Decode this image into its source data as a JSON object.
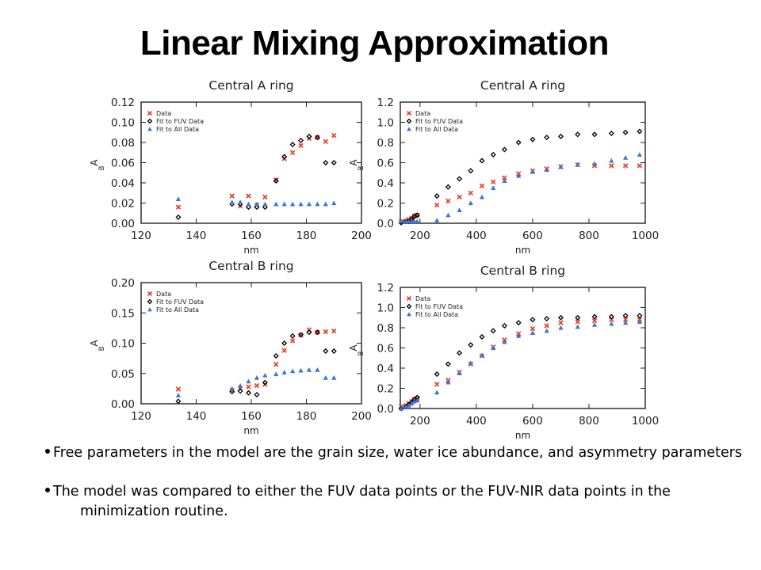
{
  "slide": {
    "title": "Linear Mixing Approximation",
    "bullets": [
      "Free parameters in the model are the grain size, water ice abundance, and asymmetry parameters",
      "The model was compared to either the FUV data points or the FUV-NIR data points in the minimization routine."
    ]
  },
  "colors": {
    "data": "#e8432b",
    "fit_fuv": "#000000",
    "fit_all": "#3a74d8"
  },
  "chart_data": [
    {
      "type": "scatter",
      "title": "Central A ring",
      "xlabel": "nm",
      "ylabel": "A",
      "ylabel_sub": "B",
      "xlim": [
        120,
        200
      ],
      "ylim": [
        0,
        0.12
      ],
      "xticks": [
        120,
        140,
        160,
        180,
        200
      ],
      "xtick_labels": [
        "120",
        "140",
        "160",
        "180",
        "200"
      ],
      "yticks": [
        0,
        0.02,
        0.04,
        0.06,
        0.08,
        0.1,
        0.12
      ],
      "ytick_labels": [
        "0.00",
        "0.02",
        "0.04",
        "0.06",
        "0.08",
        "0.10",
        "0.12"
      ],
      "legend": "top-left",
      "series": [
        {
          "name": "Data",
          "marker": "x",
          "x": [
            133.5,
            153,
            156,
            159,
            162,
            165,
            169,
            172,
            175,
            178,
            181,
            184,
            187,
            190
          ],
          "y": [
            0.016,
            0.027,
            0.017,
            0.027,
            0.018,
            0.026,
            0.043,
            0.064,
            0.07,
            0.077,
            0.084,
            0.085,
            0.081,
            0.087
          ]
        },
        {
          "name": "Fit to FUV Data",
          "marker": "diamond",
          "x": [
            133.5,
            153,
            156,
            159,
            162,
            165,
            169,
            172,
            175,
            178,
            181,
            184,
            187,
            190
          ],
          "y": [
            0.006,
            0.019,
            0.019,
            0.016,
            0.016,
            0.016,
            0.042,
            0.066,
            0.078,
            0.082,
            0.086,
            0.085,
            0.06,
            0.06
          ]
        },
        {
          "name": "Fit to All Data",
          "marker": "triangle",
          "x": [
            133.5,
            153,
            156,
            159,
            162,
            165,
            169,
            172,
            175,
            178,
            181,
            184,
            187,
            190
          ],
          "y": [
            0.024,
            0.021,
            0.021,
            0.019,
            0.019,
            0.019,
            0.019,
            0.019,
            0.019,
            0.019,
            0.019,
            0.019,
            0.019,
            0.02
          ]
        }
      ]
    },
    {
      "type": "scatter",
      "title": "Central A ring",
      "xlabel": "nm",
      "ylabel": "A",
      "ylabel_sub": "B",
      "xlim": [
        130,
        1000
      ],
      "ylim": [
        0,
        1.2
      ],
      "xticks": [
        200,
        400,
        600,
        800,
        1000
      ],
      "xtick_labels": [
        "200",
        "400",
        "600",
        "800",
        "1000"
      ],
      "yticks": [
        0,
        0.2,
        0.4,
        0.6,
        0.8,
        1.0,
        1.2
      ],
      "ytick_labels": [
        "0.0",
        "0.2",
        "0.4",
        "0.6",
        "0.8",
        "1.0",
        "1.2"
      ],
      "legend": "top-left",
      "series": [
        {
          "name": "Data",
          "marker": "x",
          "x": [
            133,
            150,
            160,
            170,
            180,
            190,
            260,
            300,
            340,
            380,
            420,
            460,
            500,
            550,
            600,
            650,
            700,
            760,
            820,
            880,
            930,
            980
          ],
          "y": [
            0.015,
            0.02,
            0.04,
            0.05,
            0.07,
            0.08,
            0.18,
            0.22,
            0.26,
            0.3,
            0.37,
            0.41,
            0.45,
            0.49,
            0.52,
            0.54,
            0.56,
            0.58,
            0.57,
            0.57,
            0.57,
            0.57
          ]
        },
        {
          "name": "Fit to FUV Data",
          "marker": "diamond",
          "x": [
            133,
            150,
            160,
            170,
            180,
            190,
            260,
            300,
            340,
            380,
            420,
            460,
            500,
            550,
            600,
            650,
            700,
            760,
            820,
            880,
            930,
            980
          ],
          "y": [
            0.006,
            0.02,
            0.02,
            0.04,
            0.07,
            0.08,
            0.27,
            0.36,
            0.44,
            0.52,
            0.62,
            0.68,
            0.73,
            0.8,
            0.83,
            0.85,
            0.86,
            0.88,
            0.88,
            0.89,
            0.9,
            0.91
          ]
        },
        {
          "name": "Fit to All Data",
          "marker": "triangle",
          "x": [
            133,
            150,
            160,
            170,
            180,
            190,
            260,
            300,
            340,
            380,
            420,
            460,
            500,
            550,
            600,
            650,
            700,
            760,
            820,
            880,
            930,
            980
          ],
          "y": [
            0.02,
            0.02,
            0.02,
            0.02,
            0.02,
            0.02,
            0.03,
            0.08,
            0.13,
            0.2,
            0.26,
            0.35,
            0.42,
            0.47,
            0.51,
            0.53,
            0.56,
            0.58,
            0.59,
            0.62,
            0.65,
            0.68
          ]
        }
      ]
    },
    {
      "type": "scatter",
      "title": "Central B ring",
      "xlabel": "nm",
      "ylabel": "A",
      "ylabel_sub": "B",
      "xlim": [
        120,
        200
      ],
      "ylim": [
        0,
        0.2
      ],
      "xticks": [
        120,
        140,
        160,
        180,
        200
      ],
      "xtick_labels": [
        "120",
        "140",
        "160",
        "180",
        "200"
      ],
      "yticks": [
        0,
        0.05,
        0.1,
        0.15,
        0.2
      ],
      "ytick_labels": [
        "0.00",
        "0.05",
        "0.10",
        "0.15",
        "0.20"
      ],
      "legend": "top-left",
      "series": [
        {
          "name": "Data",
          "marker": "x",
          "x": [
            133.5,
            153,
            156,
            159,
            162,
            165,
            169,
            172,
            175,
            178,
            181,
            184,
            187,
            190
          ],
          "y": [
            0.024,
            0.022,
            0.025,
            0.028,
            0.03,
            0.032,
            0.065,
            0.088,
            0.104,
            0.113,
            0.122,
            0.118,
            0.119,
            0.12
          ]
        },
        {
          "name": "Fit to FUV Data",
          "marker": "diamond",
          "x": [
            133.5,
            153,
            156,
            159,
            162,
            165,
            169,
            172,
            175,
            178,
            181,
            184,
            187,
            190
          ],
          "y": [
            0.004,
            0.02,
            0.021,
            0.018,
            0.015,
            0.035,
            0.079,
            0.1,
            0.112,
            0.114,
            0.118,
            0.118,
            0.087,
            0.087
          ]
        },
        {
          "name": "Fit to All Data",
          "marker": "triangle",
          "x": [
            133.5,
            153,
            156,
            159,
            162,
            165,
            169,
            172,
            175,
            178,
            181,
            184,
            187,
            190
          ],
          "y": [
            0.014,
            0.025,
            0.03,
            0.037,
            0.043,
            0.047,
            0.049,
            0.052,
            0.054,
            0.055,
            0.056,
            0.056,
            0.043,
            0.043
          ]
        }
      ]
    },
    {
      "type": "scatter",
      "title": "Central B ring",
      "xlabel": "nm",
      "ylabel": "A",
      "ylabel_sub": "B",
      "xlim": [
        130,
        1000
      ],
      "ylim": [
        0,
        1.2
      ],
      "xticks": [
        200,
        400,
        600,
        800,
        1000
      ],
      "xtick_labels": [
        "200",
        "400",
        "600",
        "800",
        "1000"
      ],
      "yticks": [
        0,
        0.2,
        0.4,
        0.6,
        0.8,
        1.0,
        1.2
      ],
      "ytick_labels": [
        "0.0",
        "0.2",
        "0.4",
        "0.6",
        "0.8",
        "1.0",
        "1.2"
      ],
      "legend": "top-left",
      "series": [
        {
          "name": "Data",
          "marker": "x",
          "x": [
            133,
            150,
            160,
            170,
            180,
            190,
            260,
            300,
            340,
            380,
            420,
            460,
            500,
            550,
            600,
            650,
            700,
            760,
            820,
            880,
            930,
            980
          ],
          "y": [
            0.02,
            0.03,
            0.05,
            0.07,
            0.09,
            0.1,
            0.24,
            0.28,
            0.36,
            0.44,
            0.52,
            0.61,
            0.68,
            0.74,
            0.79,
            0.82,
            0.85,
            0.86,
            0.87,
            0.88,
            0.88,
            0.88
          ]
        },
        {
          "name": "Fit to FUV Data",
          "marker": "diamond",
          "x": [
            133,
            150,
            160,
            170,
            180,
            190,
            260,
            300,
            340,
            380,
            420,
            460,
            500,
            550,
            600,
            650,
            700,
            760,
            820,
            880,
            930,
            980
          ],
          "y": [
            0.0,
            0.02,
            0.04,
            0.06,
            0.09,
            0.11,
            0.34,
            0.44,
            0.55,
            0.63,
            0.71,
            0.77,
            0.82,
            0.85,
            0.88,
            0.89,
            0.9,
            0.9,
            0.91,
            0.91,
            0.92,
            0.92
          ]
        },
        {
          "name": "Fit to All Data",
          "marker": "triangle",
          "x": [
            133,
            150,
            160,
            170,
            180,
            190,
            260,
            300,
            340,
            380,
            420,
            460,
            500,
            550,
            600,
            650,
            700,
            760,
            820,
            880,
            930,
            980
          ],
          "y": [
            0.0,
            0.02,
            0.03,
            0.05,
            0.07,
            0.08,
            0.16,
            0.26,
            0.35,
            0.45,
            0.53,
            0.6,
            0.66,
            0.72,
            0.75,
            0.77,
            0.8,
            0.81,
            0.83,
            0.84,
            0.85,
            0.86
          ]
        }
      ]
    }
  ]
}
